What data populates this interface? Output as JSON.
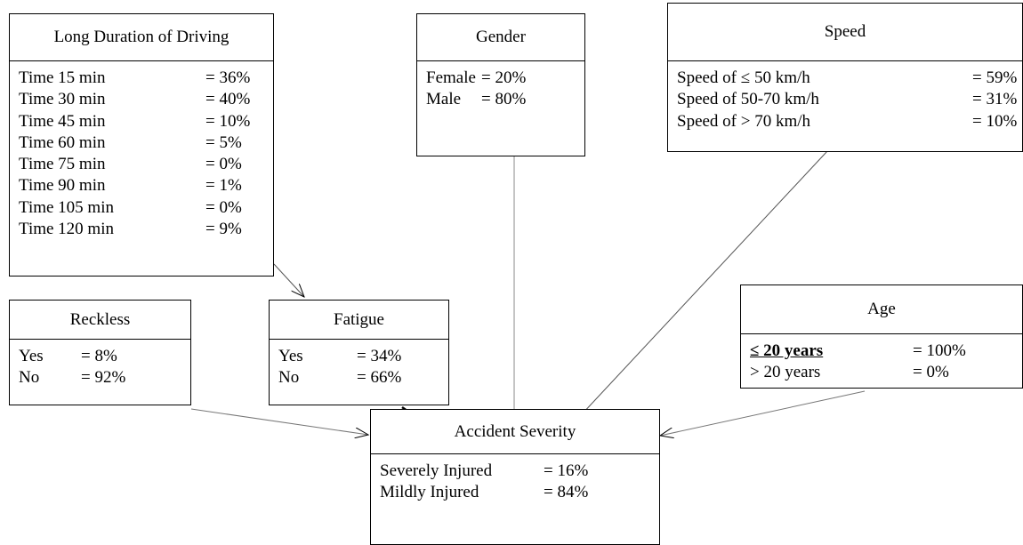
{
  "nodes": [
    {
      "title": "Long Duration of Driving",
      "rows": [
        [
          "Time 15 min",
          "= 36%"
        ],
        [
          "Time 30 min",
          "= 40%"
        ],
        [
          "Time 45 min",
          "= 10%"
        ],
        [
          "Time 60 min",
          "= 5%"
        ],
        [
          "Time 75 min",
          "= 0%"
        ],
        [
          "Time 90 min",
          "= 1%"
        ],
        [
          "Time 105 min",
          "= 0%"
        ],
        [
          "Time 120 min",
          "= 9%"
        ]
      ]
    },
    {
      "title": "Gender",
      "rows": [
        [
          "Female",
          "= 20%"
        ],
        [
          "Male",
          "= 80%"
        ]
      ]
    },
    {
      "title": "Speed",
      "rows": [
        [
          "Speed of ≤ 50 km/h",
          "= 59%"
        ],
        [
          "Speed of 50-70 km/h",
          "= 31%"
        ],
        [
          "Speed of > 70 km/h",
          "= 10%"
        ]
      ]
    },
    {
      "title": "Reckless",
      "rows": [
        [
          "Yes",
          "= 8%"
        ],
        [
          "No",
          "= 92%"
        ]
      ]
    },
    {
      "title": "Age",
      "rows": [
        [
          "≤ 20 years",
          "= 100%"
        ],
        [
          "> 20 years",
          "= 0%"
        ]
      ]
    },
    {
      "title": "Fatigue",
      "rows": [
        [
          "Yes",
          "= 34%"
        ],
        [
          "No",
          "= 66%"
        ]
      ]
    },
    {
      "title": "Accident Severity",
      "rows": [
        [
          "Severely Injured",
          "= 16%"
        ],
        [
          "Mildly Injured",
          "= 84%"
        ]
      ]
    }
  ]
}
